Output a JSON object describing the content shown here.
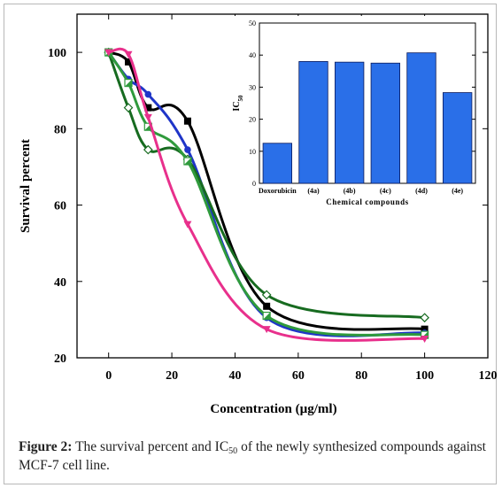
{
  "chart_data": [
    {
      "type": "line",
      "xlabel": "Concentration (µg/ml)",
      "ylabel": "Survival percent",
      "xlim": [
        -10,
        120
      ],
      "ylim": [
        20,
        110
      ],
      "xticks": [
        0,
        20,
        40,
        60,
        80,
        100,
        120
      ],
      "yticks": [
        20,
        40,
        60,
        80,
        100
      ],
      "grid": false,
      "series": [
        {
          "color": "#000000",
          "marker": "square",
          "x": [
            0,
            6.25,
            12.5,
            25,
            50,
            100
          ],
          "y": [
            100,
            97.5,
            85.5,
            82,
            33.5,
            27.5
          ]
        },
        {
          "color": "#1f35c8",
          "marker": "circle",
          "x": [
            0,
            6.25,
            12.5,
            25,
            50,
            100
          ],
          "y": [
            100,
            93,
            89,
            74.5,
            30.5,
            26.5
          ]
        },
        {
          "color": "#176b20",
          "marker": "diamond",
          "x": [
            0,
            6.25,
            12.5,
            25,
            50,
            100
          ],
          "y": [
            100,
            85.5,
            74.5,
            72,
            36.5,
            30.5
          ]
        },
        {
          "color": "#2f9a3c",
          "marker": "half-square",
          "x": [
            0,
            6.25,
            12.5,
            25,
            50,
            100
          ],
          "y": [
            100,
            92,
            80.5,
            71.5,
            31,
            26
          ]
        },
        {
          "color": "#e8308c",
          "marker": "triangle-down",
          "x": [
            0,
            6.25,
            12.5,
            25,
            50,
            100
          ],
          "y": [
            100,
            99.5,
            83,
            55,
            27.5,
            25
          ]
        }
      ]
    },
    {
      "type": "bar",
      "xlabel": "Chemical compounds",
      "ylabel": "IC",
      "ylabel_sub": "50",
      "ylim": [
        0,
        50
      ],
      "yticks": [
        0,
        10,
        20,
        30,
        40,
        50
      ],
      "categories": [
        "Doxorubicin",
        "(4a)",
        "(4b)",
        "(4c)",
        "(4d)",
        "(4e)"
      ],
      "values": [
        12.5,
        38,
        37.8,
        37.5,
        40.7,
        28.3
      ],
      "bar_color": "#2a6fe8"
    }
  ],
  "caption": {
    "label": "Figure 2:",
    "text_before": "The survival percent and IC",
    "sub": "50",
    "text_after": "of the newly synthesized compounds against MCF-7 cell line."
  }
}
